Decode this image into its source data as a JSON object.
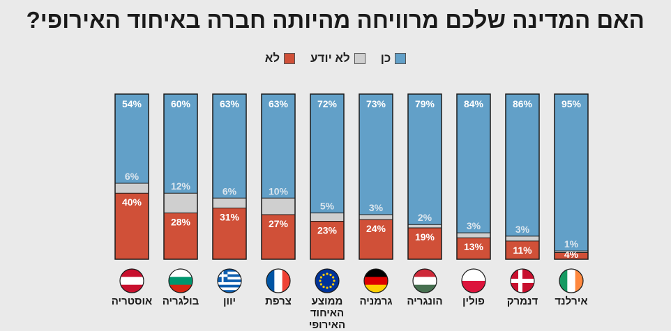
{
  "title": "האם המדינה שלכם מרוויחה מהיותה חברה באיחוד האירופי?",
  "legend": {
    "yes": "כן",
    "dont_know": "לא יודע",
    "no": "לא"
  },
  "colors": {
    "yes": "#62a0c8",
    "dont_know": "#cfcfcf",
    "no": "#d05038",
    "bar_outline": "#1a1a1a",
    "background": "#eaeaea"
  },
  "chart_data": {
    "type": "bar",
    "stacked": true,
    "categories": [
      "אוסטריה",
      "בולגריה",
      "יוון",
      "צרפת",
      "ממוצע האיחוד האירופי",
      "גרמניה",
      "הונגריה",
      "פולין",
      "דנמרק",
      "אירלנד"
    ],
    "flags": [
      "austria-flag-icon",
      "bulgaria-flag-icon",
      "greece-flag-icon",
      "france-flag-icon",
      "eu-flag-icon",
      "germany-flag-icon",
      "hungary-flag-icon",
      "poland-flag-icon",
      "denmark-flag-icon",
      "ireland-flag-icon"
    ],
    "series": [
      {
        "name": "כן",
        "values": [
          54,
          60,
          63,
          63,
          72,
          73,
          79,
          84,
          86,
          95
        ]
      },
      {
        "name": "לא יודע",
        "values": [
          6,
          12,
          6,
          10,
          5,
          3,
          2,
          3,
          3,
          1
        ]
      },
      {
        "name": "לא",
        "values": [
          40,
          28,
          31,
          27,
          23,
          24,
          19,
          13,
          11,
          4
        ]
      }
    ],
    "ylim": [
      0,
      100
    ],
    "grid": false,
    "legend_position": "top-center"
  }
}
